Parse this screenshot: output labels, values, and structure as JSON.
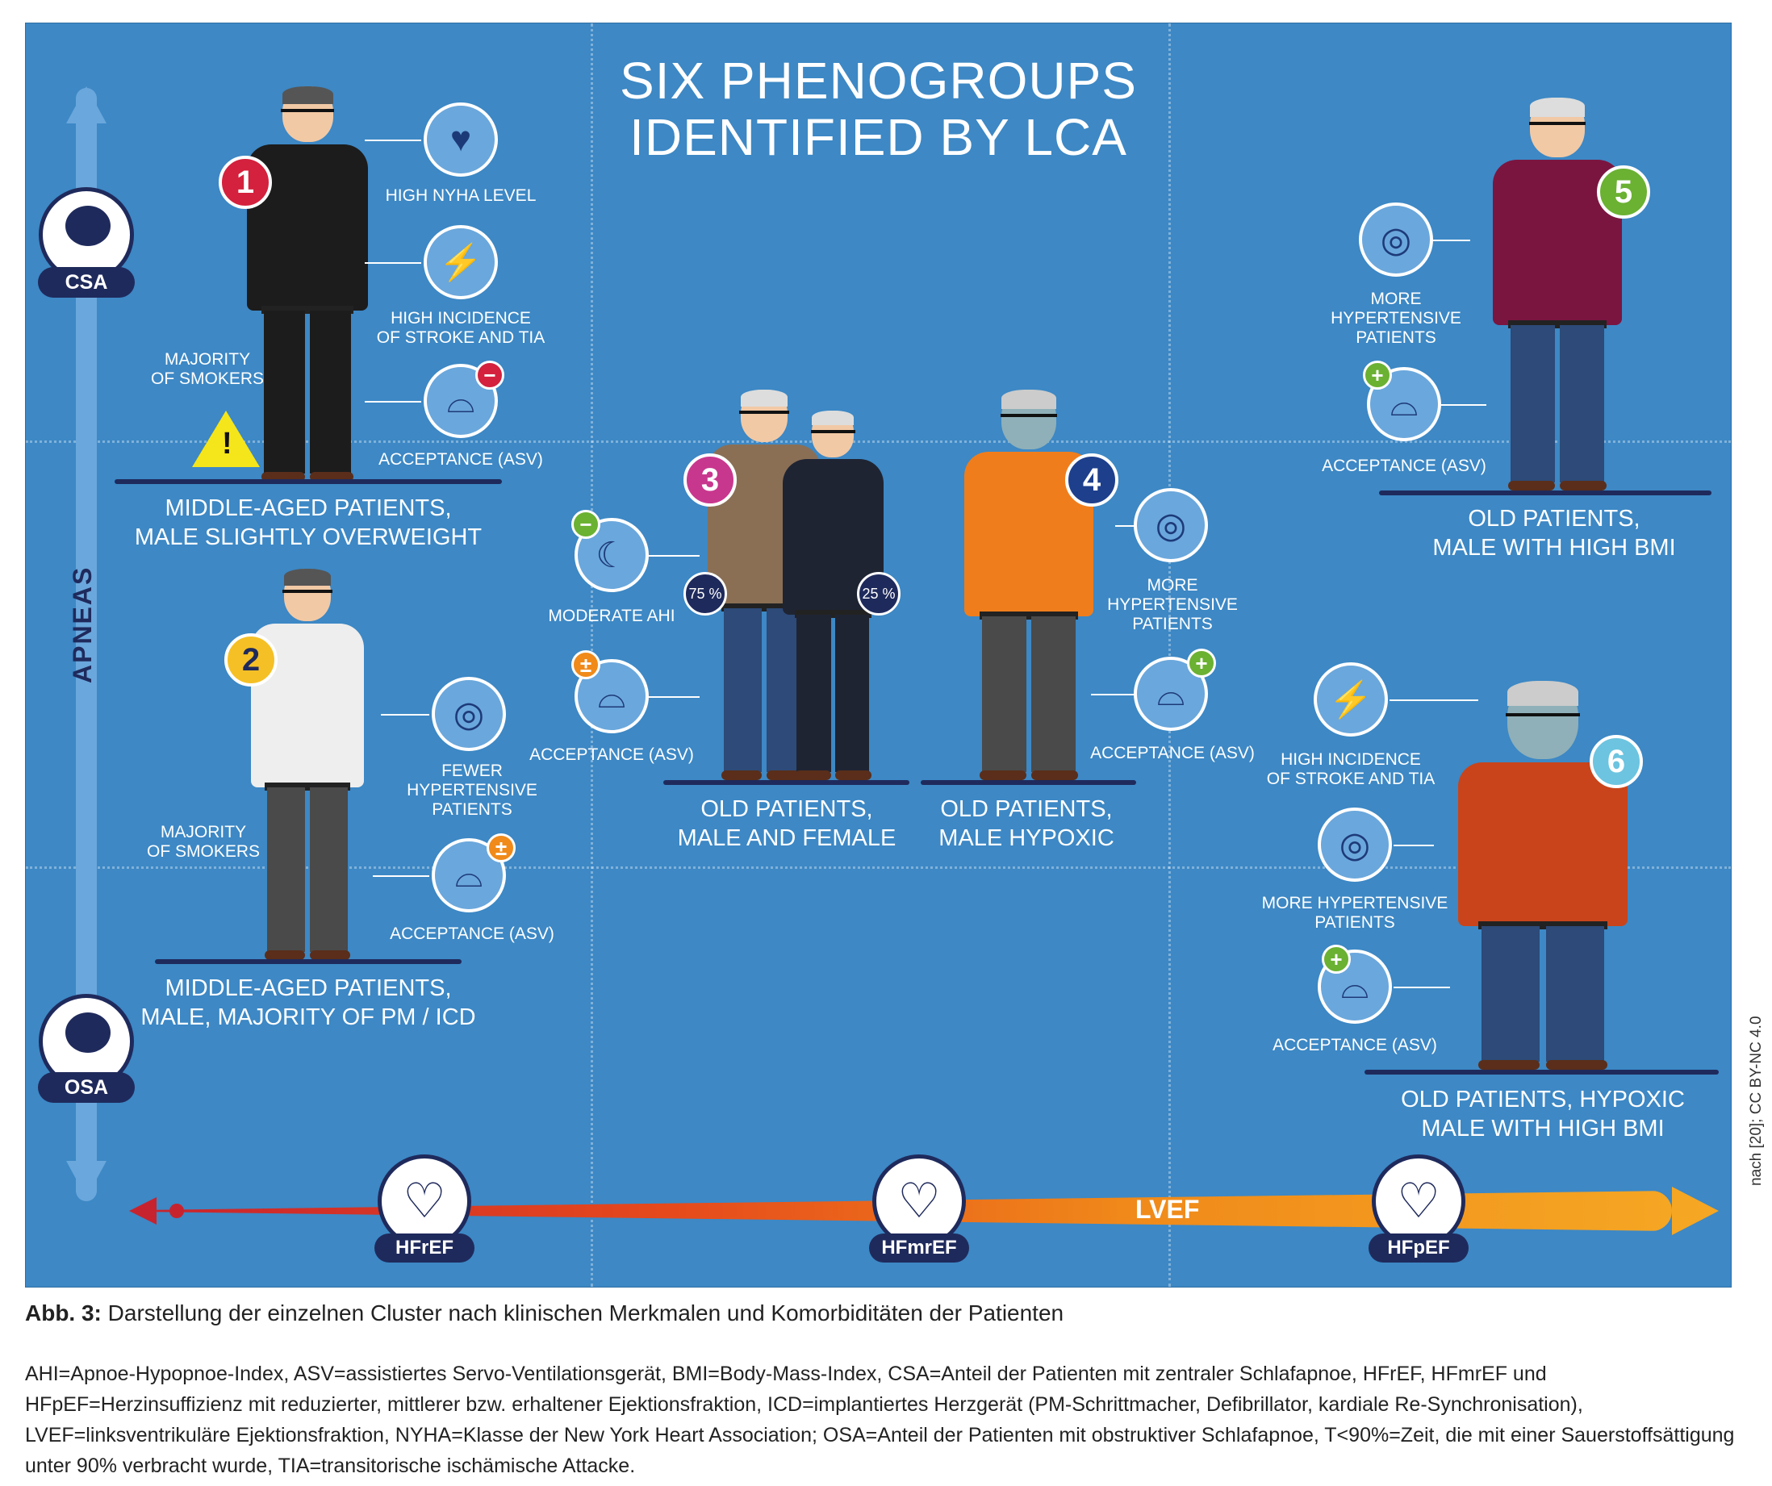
{
  "title": [
    "SIX PHENOGROUPS",
    "IDENTIFIED BY LCA"
  ],
  "axis": {
    "vertical_label": "APNEAS",
    "top_tag": "CSA",
    "bottom_tag": "OSA",
    "horizontal_label": "LVEF",
    "hf_tags": [
      "HFrEF",
      "HFmrEF",
      "HFpEF"
    ]
  },
  "groups": [
    {
      "number": "1",
      "color": "#d4213d",
      "label": [
        "MIDDLE-AGED PATIENTS,",
        "MALE SLIGHTLY OVERWEIGHT"
      ],
      "features": [
        "HIGH NYHA LEVEL",
        [
          "HIGH INCIDENCE",
          "OF STROKE AND TIA"
        ],
        "ACCEPTANCE (ASV)"
      ],
      "note": [
        "MAJORITY",
        "OF SMOKERS"
      ]
    },
    {
      "number": "2",
      "color": "#f5c026",
      "label": [
        "MIDDLE-AGED PATIENTS,",
        "MALE, MAJORITY OF PM / ICD"
      ],
      "features": [
        [
          "FEWER",
          "HYPERTENSIVE",
          "PATIENTS"
        ],
        "ACCEPTANCE (ASV)"
      ],
      "note": [
        "MAJORITY",
        "OF SMOKERS"
      ]
    },
    {
      "number": "3",
      "color": "#c8378e",
      "label": [
        "OLD PATIENTS,",
        "MALE AND FEMALE"
      ],
      "features": [
        "MODERATE AHI",
        "ACCEPTANCE (ASV)"
      ],
      "shares": [
        "75 %",
        "25 %"
      ]
    },
    {
      "number": "4",
      "color": "#1e3f8c",
      "label": [
        "OLD PATIENTS,",
        "MALE HYPOXIC"
      ],
      "features": [
        [
          "MORE",
          "HYPERTENSIVE",
          "PATIENTS"
        ],
        "ACCEPTANCE (ASV)"
      ]
    },
    {
      "number": "5",
      "color": "#6bb132",
      "label": [
        "OLD PATIENTS,",
        "MALE WITH HIGH BMI"
      ],
      "features": [
        [
          "MORE",
          "HYPERTENSIVE",
          "PATIENTS"
        ],
        "ACCEPTANCE (ASV)"
      ]
    },
    {
      "number": "6",
      "color": "#6cc4e0",
      "label": [
        "OLD PATIENTS, HYPOXIC",
        "MALE WITH HIGH BMI"
      ],
      "features": [
        [
          "HIGH INCIDENCE",
          "OF STROKE AND TIA"
        ],
        [
          "MORE HYPERTENSIVE",
          "PATIENTS"
        ],
        "ACCEPTANCE (ASV)"
      ]
    }
  ],
  "caption": {
    "prefix": "Abb. 3:",
    "text": " Darstellung der einzelnen Cluster nach klinischen Merkmalen und Komorbiditäten der Patienten"
  },
  "abbreviations": "AHI=Apnoe-Hypopnoe-Index, ASV=assistiertes Servo-Ventilationsgerät, BMI=Body-Mass-Index, CSA=Anteil der Patienten mit zentraler Schlafapnoe, HFrEF, HFmrEF und HFpEF=Herzinsuffizienz mit reduzierter, mittlerer bzw. erhaltener Ejektionsfraktion, ICD=implantiertes Herzgerät (PM-Schrittmacher, Defibrillator, kardiale Re-Synchronisation), LVEF=linksventrikuläre Ejektionsfraktion, NYHA=Klasse der New York Heart Association; OSA=Anteil der Patienten mit obstruktiver Schlafapnoe, T<90%=Zeit, die mit einer Sauerstoffsättigung unter 90% verbracht wurde, TIA=transitorische ischämische Attacke.",
  "credit": "nach [20]; CC BY-NC 4.0"
}
